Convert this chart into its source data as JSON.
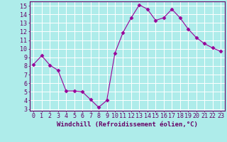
{
  "x": [
    0,
    1,
    2,
    3,
    4,
    5,
    6,
    7,
    8,
    9,
    10,
    11,
    12,
    13,
    14,
    15,
    16,
    17,
    18,
    19,
    20,
    21,
    22,
    23
  ],
  "y": [
    8.2,
    9.2,
    8.1,
    7.5,
    5.1,
    5.1,
    5.0,
    4.1,
    3.2,
    4.0,
    9.5,
    11.9,
    13.6,
    15.1,
    14.6,
    13.3,
    13.6,
    14.6,
    13.6,
    12.3,
    11.3,
    10.6,
    10.1,
    9.7
  ],
  "line_color": "#990099",
  "marker": "D",
  "marker_size": 2.5,
  "bg_color": "#aeecea",
  "grid_color": "#ffffff",
  "xlabel": "Windchill (Refroidissement éolien,°C)",
  "xlabel_color": "#660066",
  "tick_color": "#660066",
  "spine_color": "#660066",
  "ylim": [
    2.8,
    15.5
  ],
  "xlim": [
    -0.5,
    23.5
  ],
  "yticks": [
    3,
    4,
    5,
    6,
    7,
    8,
    9,
    10,
    11,
    12,
    13,
    14,
    15
  ],
  "xticks": [
    0,
    1,
    2,
    3,
    4,
    5,
    6,
    7,
    8,
    9,
    10,
    11,
    12,
    13,
    14,
    15,
    16,
    17,
    18,
    19,
    20,
    21,
    22,
    23
  ],
  "font_size": 6,
  "label_font_size": 6.5
}
